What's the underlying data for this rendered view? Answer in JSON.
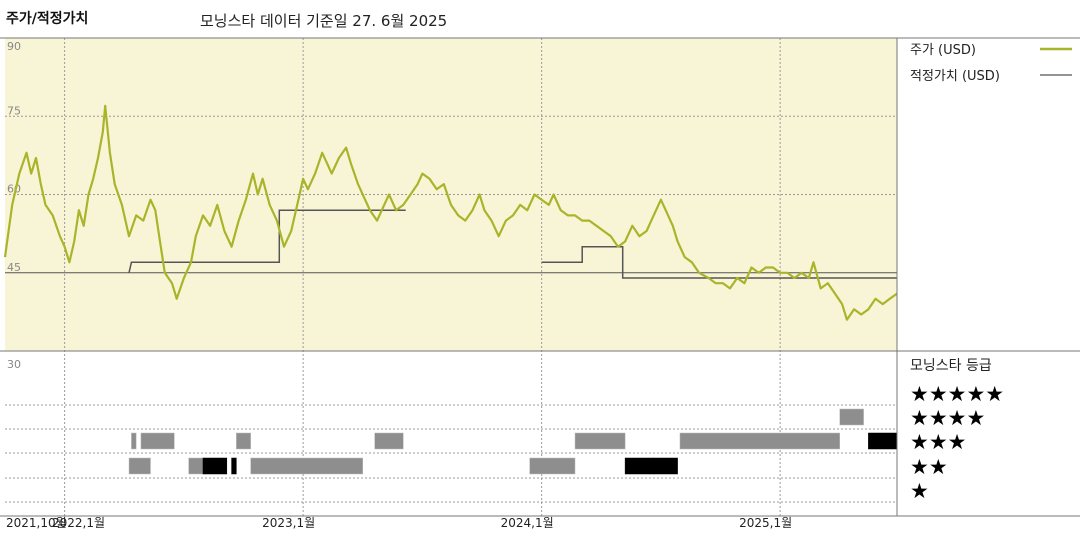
{
  "header": {
    "title": "주가/적정가치",
    "subtitle": "모닝스타 데이터 기준일 27. 6월 2025"
  },
  "colors": {
    "price": "#a8b52a",
    "fair_value": "#555555",
    "panel_bg": "#f8f5d6",
    "grid": "#9a9a9a"
  },
  "chart_data": {
    "type": "line",
    "y_ticks": [
      "90",
      "75",
      "60",
      "45",
      "30"
    ],
    "ylim": [
      30,
      90
    ],
    "x_ticks": [
      {
        "label": "2021,10월",
        "date": 2021.75
      },
      {
        "label": "2022,1월",
        "date": 2022.0
      },
      {
        "label": "2023,1월",
        "date": 2023.0
      },
      {
        "label": "2024,1월",
        "date": 2024.0
      },
      {
        "label": "2025,1월",
        "date": 2025.0
      }
    ],
    "xlim": [
      2021.75,
      2025.49
    ],
    "series": [
      {
        "name": "주가 (USD)",
        "color": "#a8b52a",
        "points": [
          [
            2021.75,
            48
          ],
          [
            2021.78,
            58
          ],
          [
            2021.81,
            64
          ],
          [
            2021.84,
            68
          ],
          [
            2021.86,
            64
          ],
          [
            2021.88,
            67
          ],
          [
            2021.9,
            62
          ],
          [
            2021.92,
            58
          ],
          [
            2021.95,
            56
          ],
          [
            2021.98,
            52
          ],
          [
            2022.0,
            50
          ],
          [
            2022.02,
            47
          ],
          [
            2022.04,
            51
          ],
          [
            2022.06,
            57
          ],
          [
            2022.08,
            54
          ],
          [
            2022.1,
            60
          ],
          [
            2022.12,
            63
          ],
          [
            2022.14,
            67
          ],
          [
            2022.16,
            72
          ],
          [
            2022.17,
            77
          ],
          [
            2022.19,
            68
          ],
          [
            2022.21,
            62
          ],
          [
            2022.24,
            58
          ],
          [
            2022.27,
            52
          ],
          [
            2022.3,
            56
          ],
          [
            2022.33,
            55
          ],
          [
            2022.36,
            59
          ],
          [
            2022.38,
            57
          ],
          [
            2022.4,
            51
          ],
          [
            2022.42,
            45
          ],
          [
            2022.45,
            43
          ],
          [
            2022.47,
            40
          ],
          [
            2022.5,
            44
          ],
          [
            2022.53,
            47
          ],
          [
            2022.55,
            52
          ],
          [
            2022.58,
            56
          ],
          [
            2022.61,
            54
          ],
          [
            2022.64,
            58
          ],
          [
            2022.67,
            53
          ],
          [
            2022.7,
            50
          ],
          [
            2022.73,
            55
          ],
          [
            2022.76,
            59
          ],
          [
            2022.79,
            64
          ],
          [
            2022.81,
            60
          ],
          [
            2022.83,
            63
          ],
          [
            2022.86,
            58
          ],
          [
            2022.89,
            55
          ],
          [
            2022.92,
            50
          ],
          [
            2022.95,
            53
          ],
          [
            2022.98,
            59
          ],
          [
            2023.0,
            63
          ],
          [
            2023.02,
            61
          ],
          [
            2023.05,
            64
          ],
          [
            2023.08,
            68
          ],
          [
            2023.1,
            66
          ],
          [
            2023.12,
            64
          ],
          [
            2023.15,
            67
          ],
          [
            2023.18,
            69
          ],
          [
            2023.2,
            66
          ],
          [
            2023.23,
            62
          ],
          [
            2023.26,
            59
          ],
          [
            2023.28,
            57
          ],
          [
            2023.31,
            55
          ],
          [
            2023.34,
            58
          ],
          [
            2023.36,
            60
          ],
          [
            2023.39,
            57
          ],
          [
            2023.42,
            58
          ],
          [
            2023.45,
            60
          ],
          [
            2023.48,
            62
          ],
          [
            2023.5,
            64
          ],
          [
            2023.53,
            63
          ],
          [
            2023.56,
            61
          ],
          [
            2023.59,
            62
          ],
          [
            2023.62,
            58
          ],
          [
            2023.65,
            56
          ],
          [
            2023.68,
            55
          ],
          [
            2023.71,
            57
          ],
          [
            2023.74,
            60
          ],
          [
            2023.76,
            57
          ],
          [
            2023.79,
            55
          ],
          [
            2023.82,
            52
          ],
          [
            2023.85,
            55
          ],
          [
            2023.88,
            56
          ],
          [
            2023.91,
            58
          ],
          [
            2023.94,
            57
          ],
          [
            2023.97,
            60
          ],
          [
            2024.0,
            59
          ],
          [
            2024.03,
            58
          ],
          [
            2024.05,
            60
          ],
          [
            2024.08,
            57
          ],
          [
            2024.11,
            56
          ],
          [
            2024.14,
            56
          ],
          [
            2024.17,
            55
          ],
          [
            2024.2,
            55
          ],
          [
            2024.23,
            54
          ],
          [
            2024.26,
            53
          ],
          [
            2024.29,
            52
          ],
          [
            2024.32,
            50
          ],
          [
            2024.35,
            51
          ],
          [
            2024.38,
            54
          ],
          [
            2024.41,
            52
          ],
          [
            2024.44,
            53
          ],
          [
            2024.46,
            55
          ],
          [
            2024.48,
            57
          ],
          [
            2024.5,
            59
          ],
          [
            2024.52,
            57
          ],
          [
            2024.55,
            54
          ],
          [
            2024.57,
            51
          ],
          [
            2024.6,
            48
          ],
          [
            2024.63,
            47
          ],
          [
            2024.66,
            45
          ],
          [
            2024.7,
            44
          ],
          [
            2024.73,
            43
          ],
          [
            2024.76,
            43
          ],
          [
            2024.79,
            42
          ],
          [
            2024.82,
            44
          ],
          [
            2024.85,
            43
          ],
          [
            2024.88,
            46
          ],
          [
            2024.91,
            45
          ],
          [
            2024.94,
            46
          ],
          [
            2024.97,
            46
          ],
          [
            2025.0,
            45
          ],
          [
            2025.03,
            45
          ],
          [
            2025.06,
            44
          ],
          [
            2025.09,
            45
          ],
          [
            2025.12,
            44
          ],
          [
            2025.14,
            47
          ],
          [
            2025.17,
            42
          ],
          [
            2025.2,
            43
          ],
          [
            2025.23,
            41
          ],
          [
            2025.26,
            39
          ],
          [
            2025.28,
            36
          ],
          [
            2025.31,
            38
          ],
          [
            2025.34,
            37
          ],
          [
            2025.37,
            38
          ],
          [
            2025.4,
            40
          ],
          [
            2025.43,
            39
          ],
          [
            2025.46,
            40
          ],
          [
            2025.49,
            41
          ]
        ]
      },
      {
        "name": "적정가치 (USD)",
        "color": "#555555",
        "points": [
          [
            2022.27,
            45
          ],
          [
            2022.28,
            47
          ],
          [
            2022.9,
            47
          ],
          [
            2022.9,
            57
          ],
          [
            2023.43,
            57
          ],
          [
            2024.0,
            47
          ],
          [
            2024.17,
            47
          ],
          [
            2024.17,
            50
          ],
          [
            2024.34,
            50
          ],
          [
            2024.34,
            44
          ],
          [
            2025.49,
            44
          ]
        ]
      }
    ],
    "rating_label": "모닝스타 등급",
    "rating_stars": [
      "★★★★★",
      "★★★★",
      "★★★",
      "★★",
      "★"
    ],
    "ratings": [
      {
        "stars": 4,
        "from": 2025.25,
        "to": 2025.35
      },
      {
        "stars": 3,
        "from": 2022.28,
        "to": 2022.3
      },
      {
        "stars": 3,
        "from": 2022.32,
        "to": 2022.46
      },
      {
        "stars": 3,
        "from": 2022.72,
        "to": 2022.78
      },
      {
        "stars": 3,
        "from": 2023.3,
        "to": 2023.42
      },
      {
        "stars": 3,
        "from": 2024.14,
        "to": 2024.35
      },
      {
        "stars": 3,
        "from": 2024.58,
        "to": 2025.25
      },
      {
        "stars": 3,
        "from": 2025.37,
        "to": 2025.49,
        "strong": true
      },
      {
        "stars": 2,
        "from": 2022.27,
        "to": 2022.36
      },
      {
        "stars": 2,
        "from": 2022.52,
        "to": 2022.58
      },
      {
        "stars": 2,
        "from": 2022.58,
        "to": 2022.68,
        "strong": true
      },
      {
        "stars": 2,
        "from": 2022.7,
        "to": 2022.72,
        "strong": true
      },
      {
        "stars": 2,
        "from": 2022.78,
        "to": 2023.25
      },
      {
        "stars": 2,
        "from": 2023.95,
        "to": 2024.14
      },
      {
        "stars": 2,
        "from": 2024.35,
        "to": 2024.47,
        "strong": true
      },
      {
        "stars": 2,
        "from": 2024.47,
        "to": 2024.57,
        "strong": true
      }
    ]
  }
}
